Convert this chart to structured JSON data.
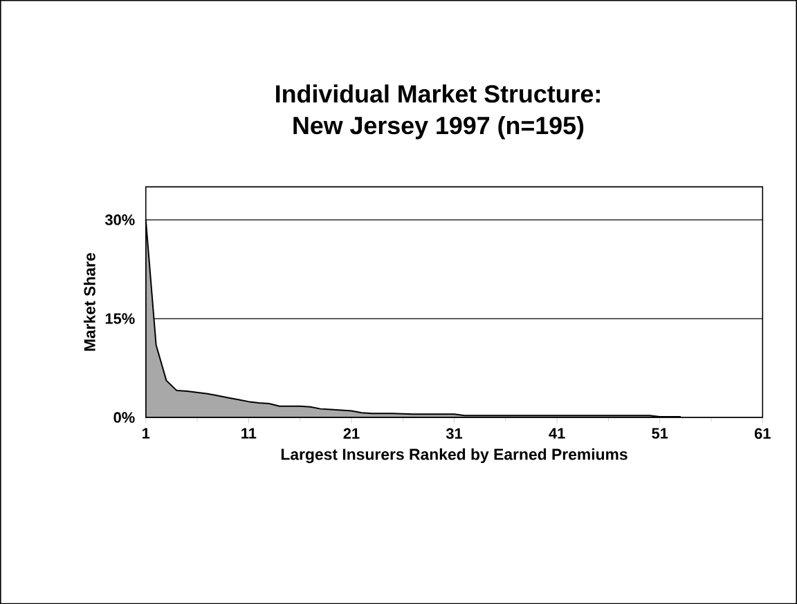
{
  "chart_data": {
    "type": "area",
    "title": "Individual Market Structure:\nNew Jersey 1997 (n=195)",
    "xlabel": "Largest Insurers Ranked by Earned Premiums",
    "ylabel": "Market Share",
    "x": [
      1,
      2,
      3,
      4,
      5,
      6,
      7,
      8,
      9,
      10,
      11,
      12,
      13,
      14,
      15,
      16,
      17,
      18,
      19,
      20,
      21,
      22,
      23,
      25,
      27,
      29,
      31,
      32,
      35,
      40,
      45,
      50,
      51,
      53
    ],
    "series": [
      {
        "color": "#a8a8a8",
        "values": [
          30,
          11,
          5.6,
          4.1,
          4.0,
          3.8,
          3.6,
          3.3,
          3.0,
          2.7,
          2.4,
          2.2,
          2.1,
          1.7,
          1.7,
          1.7,
          1.6,
          1.3,
          1.2,
          1.1,
          1.0,
          0.7,
          0.6,
          0.6,
          0.5,
          0.5,
          0.5,
          0.3,
          0.3,
          0.3,
          0.3,
          0.3,
          0.1,
          0.1
        ]
      }
    ],
    "xlim": [
      1,
      61
    ],
    "xticks": [
      1,
      11,
      21,
      31,
      41,
      51,
      61
    ],
    "ylim": [
      0,
      35
    ],
    "yticks": [
      {
        "value": 0,
        "label": "0%"
      },
      {
        "value": 15,
        "label": "15%"
      },
      {
        "value": 30,
        "label": "30%"
      }
    ],
    "grid": "y"
  }
}
